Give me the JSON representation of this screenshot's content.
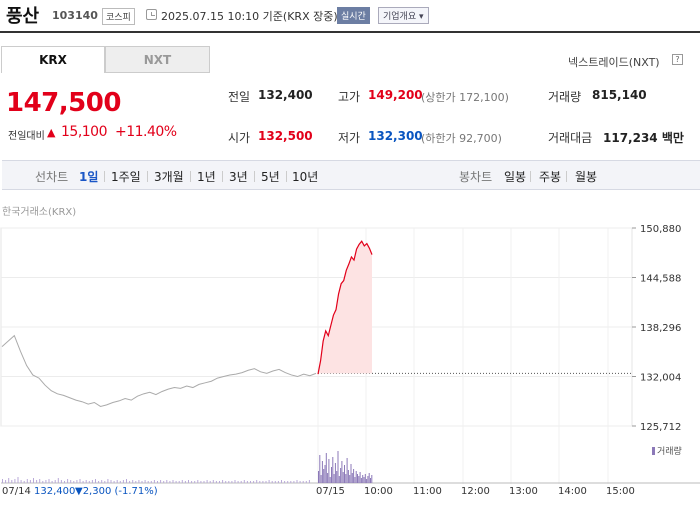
{
  "header": {
    "stock_name": "풍산",
    "stock_code": "103140",
    "market": "코스피",
    "datetime": "2025.07.15 10:10 기준(KRX 장중)",
    "realtime": "실시간",
    "company_info": "기업개요 ▾"
  },
  "tabs": [
    {
      "label": "KRX"
    },
    {
      "label": "NXT"
    }
  ],
  "nxt_link": "넥스트레이드(NXT)",
  "price": {
    "current": "147,500",
    "change_label": "전일대비",
    "change_arrow": "▲",
    "change_value": "15,100",
    "change_pct": "+11.40%"
  },
  "stats": {
    "prev_close": {
      "label": "전일",
      "value": "132,400"
    },
    "high": {
      "label": "고가",
      "value": "149,200",
      "sub": "(상한가 172,100)"
    },
    "volume": {
      "label": "거래량",
      "value": "815,140"
    },
    "open": {
      "label": "시가",
      "value": "132,500"
    },
    "low": {
      "label": "저가",
      "value": "132,300",
      "sub": "(하한가 92,700)"
    },
    "amount": {
      "label": "거래대금",
      "value": "117,234 백만"
    }
  },
  "periods": {
    "line_label": "선차트",
    "line_items": [
      "1일",
      "1주일",
      "3개월",
      "1년",
      "3년",
      "5년",
      "10년"
    ],
    "active": "1일",
    "candle_label": "봉차트",
    "candle_items": [
      "일봉",
      "주봉",
      "월봉"
    ]
  },
  "chart_data": {
    "type": "line",
    "caption": "한국거래소(KRX)",
    "y_ticks": [
      "150,880",
      "144,588",
      "138,296",
      "132,004",
      "125,712"
    ],
    "ylim": [
      125712,
      150880
    ],
    "reference_line": 132400,
    "x_labels": [
      "07/15",
      "10:00",
      "11:00",
      "12:00",
      "13:00",
      "14:00",
      "15:00"
    ],
    "volume_legend": "거래량",
    "prev_day_series": [
      135800,
      136500,
      137200,
      135200,
      133400,
      132200,
      131800,
      130900,
      130200,
      129800,
      129600,
      129300,
      129000,
      128800,
      128500,
      128700,
      128200,
      128400,
      128700,
      128900,
      129200,
      129000,
      129500,
      129800,
      130000,
      129700,
      130100,
      130400,
      130600,
      130500,
      130800,
      130600,
      131000,
      131200,
      131400,
      131800,
      132000,
      132200,
      132300,
      132500,
      132800,
      133000,
      132600,
      132400,
      132700,
      132900,
      132500,
      132200,
      132000,
      132300,
      132100,
      132400
    ],
    "today_series": [
      132300,
      134000,
      136500,
      137800,
      137200,
      138500,
      139800,
      140500,
      142500,
      143800,
      144200,
      145500,
      146300,
      147200,
      146800,
      148200,
      148800,
      149200,
      148600,
      148900,
      148300,
      147500
    ]
  },
  "footer": {
    "date": "07/14",
    "close": "132,400",
    "change": "▼2,300 (-1.71%)"
  },
  "colors": {
    "up": "#e2001a",
    "down": "#0a55c0",
    "prev_line": "#aaaaaa",
    "fill": "#fde3e3",
    "volume": "#8c79b8"
  }
}
